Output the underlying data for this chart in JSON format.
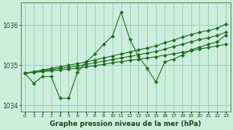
{
  "title": "Graphe pression niveau de la mer (hPa)",
  "bg_color": "#cceedd",
  "grid_color": "#99ccbb",
  "line_color": "#1e6b1e",
  "marker_color": "#1e6b1e",
  "label_color": "#1a4a1a",
  "hours": [
    0,
    1,
    2,
    3,
    4,
    5,
    6,
    7,
    8,
    9,
    10,
    11,
    12,
    13,
    14,
    15,
    16,
    17,
    18,
    19,
    20,
    21,
    22,
    23
  ],
  "series_main": [
    1034.8,
    1034.55,
    1034.72,
    1034.72,
    1034.18,
    1034.18,
    1034.82,
    1035.08,
    1035.28,
    1035.52,
    1035.72,
    1036.32,
    1035.65,
    1035.22,
    1034.92,
    1034.58,
    1035.08,
    1035.15,
    1035.25,
    1035.38,
    1035.45,
    1035.52,
    1035.58,
    1035.75
  ],
  "series_trend1": [
    1034.8,
    1034.82,
    1034.84,
    1034.86,
    1034.88,
    1034.9,
    1034.93,
    1034.96,
    1034.99,
    1035.02,
    1035.06,
    1035.09,
    1035.12,
    1035.15,
    1035.18,
    1035.21,
    1035.25,
    1035.28,
    1035.32,
    1035.36,
    1035.4,
    1035.44,
    1035.48,
    1035.52
  ],
  "series_trend2": [
    1034.8,
    1034.83,
    1034.86,
    1034.89,
    1034.92,
    1034.95,
    1034.98,
    1035.02,
    1035.06,
    1035.1,
    1035.14,
    1035.18,
    1035.22,
    1035.26,
    1035.3,
    1035.34,
    1035.4,
    1035.46,
    1035.52,
    1035.58,
    1035.64,
    1035.68,
    1035.74,
    1035.82
  ],
  "series_trend3": [
    1034.8,
    1034.84,
    1034.88,
    1034.92,
    1034.96,
    1035.0,
    1035.04,
    1035.08,
    1035.13,
    1035.18,
    1035.23,
    1035.28,
    1035.33,
    1035.38,
    1035.43,
    1035.48,
    1035.56,
    1035.62,
    1035.7,
    1035.76,
    1035.82,
    1035.86,
    1035.92,
    1036.02
  ],
  "ylim": [
    1033.85,
    1036.55
  ],
  "yticks": [
    1034,
    1035,
    1036
  ],
  "xlim": [
    -0.5,
    23.5
  ]
}
